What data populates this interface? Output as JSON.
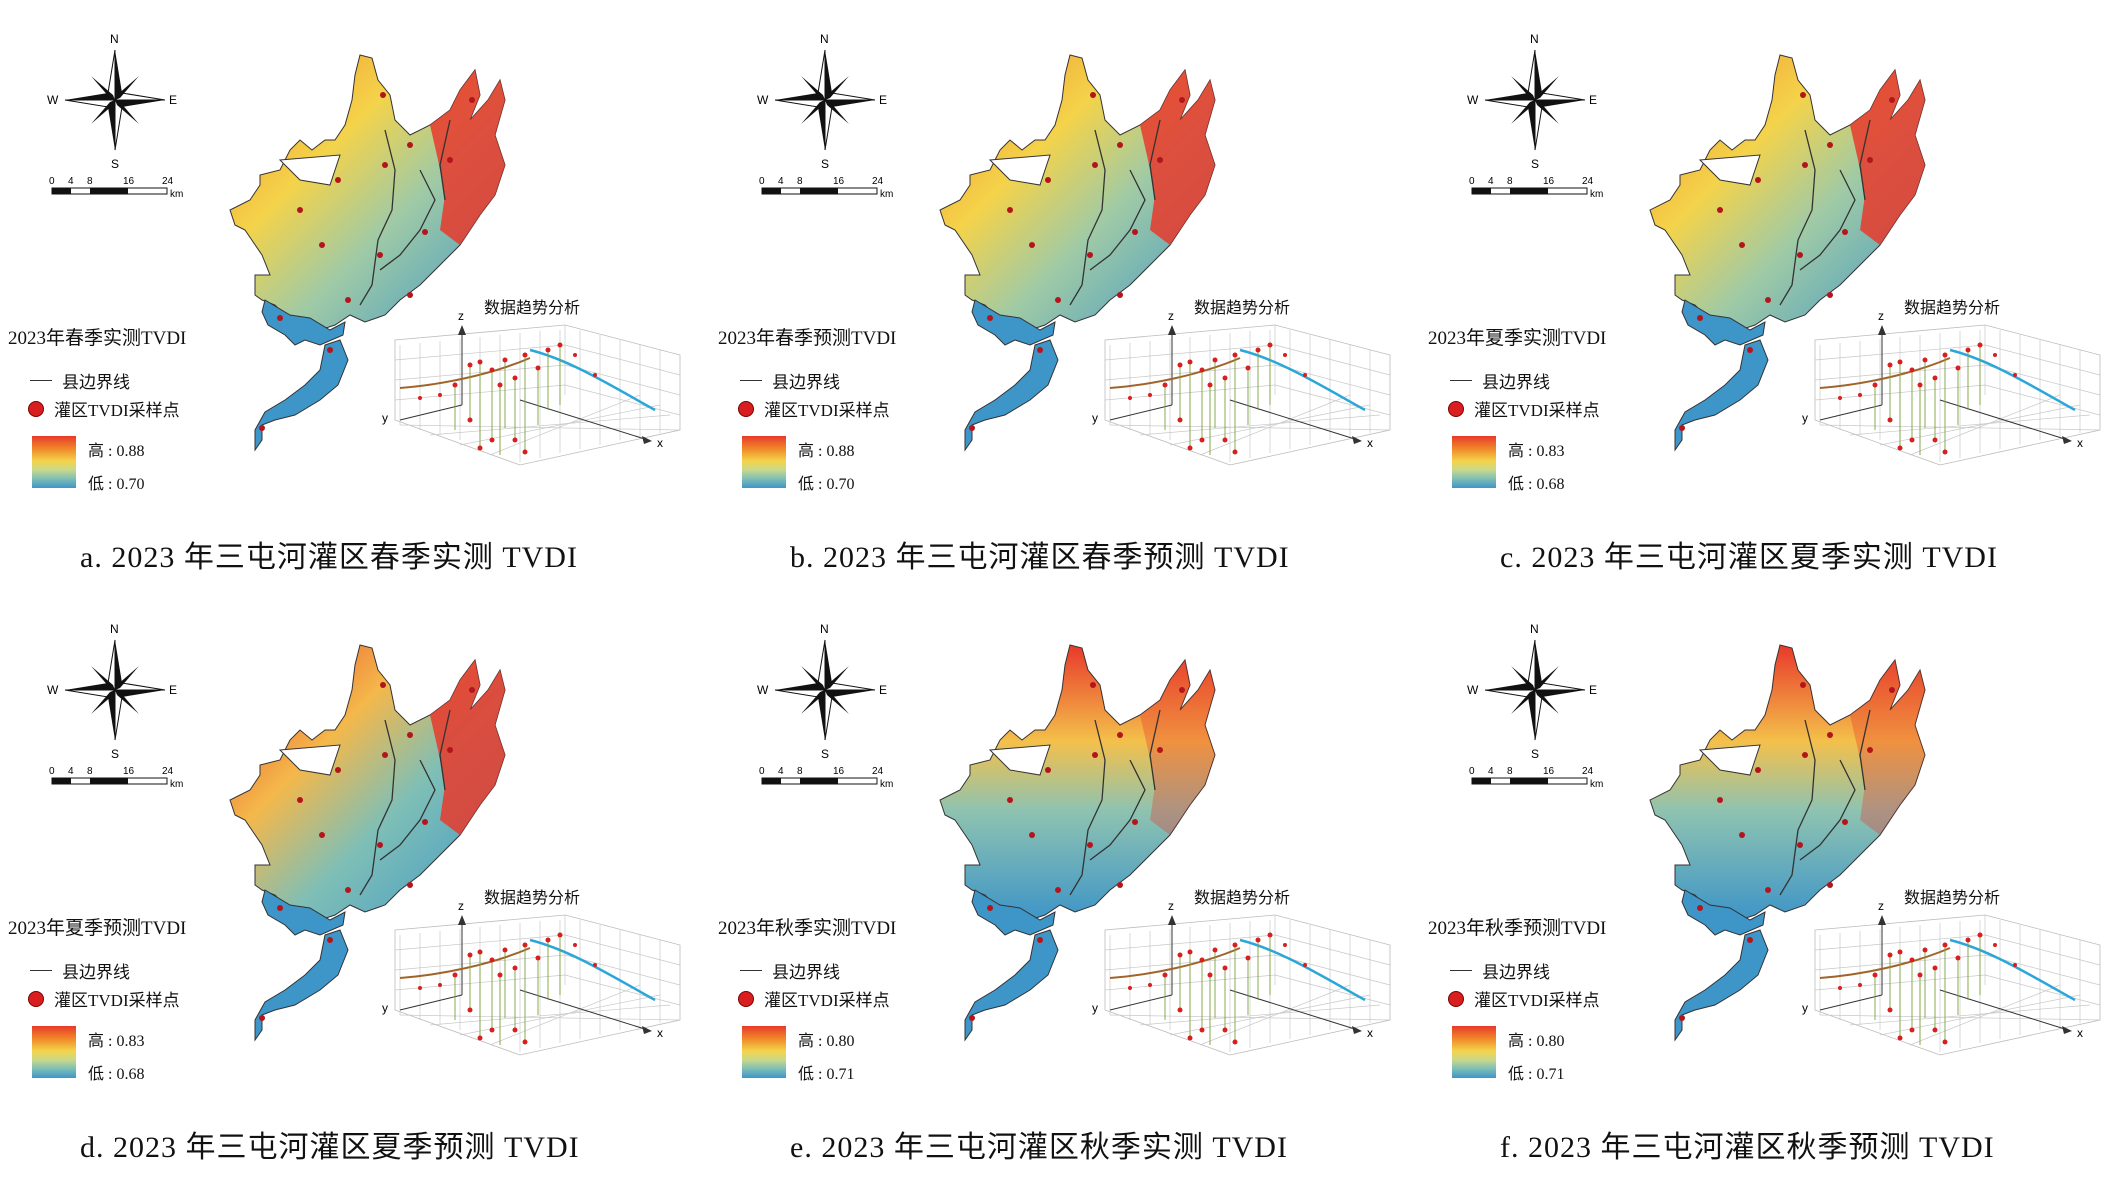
{
  "colors": {
    "high": "#e8392b",
    "mid": "#f4d34a",
    "low": "#3e95c8",
    "sample_point": "#d81e1e",
    "trend_brown": "#a0642a",
    "trend_blue": "#2aa6d8"
  },
  "compass": {
    "n": "N",
    "s": "S",
    "e": "E",
    "w": "W"
  },
  "scale_bar": {
    "ticks": [
      "0",
      "4",
      "8",
      "16",
      "24"
    ],
    "unit": "km"
  },
  "legend": {
    "boundary_label": "县边界线",
    "sample_label": "灌区TVDI采样点"
  },
  "trend_title": "数据趋势分析",
  "axes": {
    "x": "x",
    "y": "y",
    "z": "z"
  },
  "panels": [
    {
      "id": "a",
      "legend_title": "2023年春季实测TVDI",
      "high": "高 : 0.88",
      "low": "低 : 0.70",
      "caption": "a. 2023 年三屯河灌区春季实测 TVDI"
    },
    {
      "id": "b",
      "legend_title": "2023年春季预测TVDI",
      "high": "高 : 0.88",
      "low": "低 : 0.70",
      "caption": "b. 2023 年三屯河灌区春季预测 TVDI"
    },
    {
      "id": "c",
      "legend_title": "2023年夏季实测TVDI",
      "high": "高 : 0.83",
      "low": "低 : 0.68",
      "caption": "c. 2023 年三屯河灌区夏季实测 TVDI"
    },
    {
      "id": "d",
      "legend_title": "2023年夏季预测TVDI",
      "high": "高 : 0.83",
      "low": "低 : 0.68",
      "caption": "d. 2023 年三屯河灌区夏季预测 TVDI"
    },
    {
      "id": "e",
      "legend_title": "2023年秋季实测TVDI",
      "high": "高 : 0.80",
      "low": "低 : 0.71",
      "caption": "e. 2023 年三屯河灌区秋季实测 TVDI"
    },
    {
      "id": "f",
      "legend_title": "2023年秋季预测TVDI",
      "high": "高 : 0.80",
      "low": "低 : 0.71",
      "caption": "f. 2023 年三屯河灌区秋季预测 TVDI"
    }
  ]
}
